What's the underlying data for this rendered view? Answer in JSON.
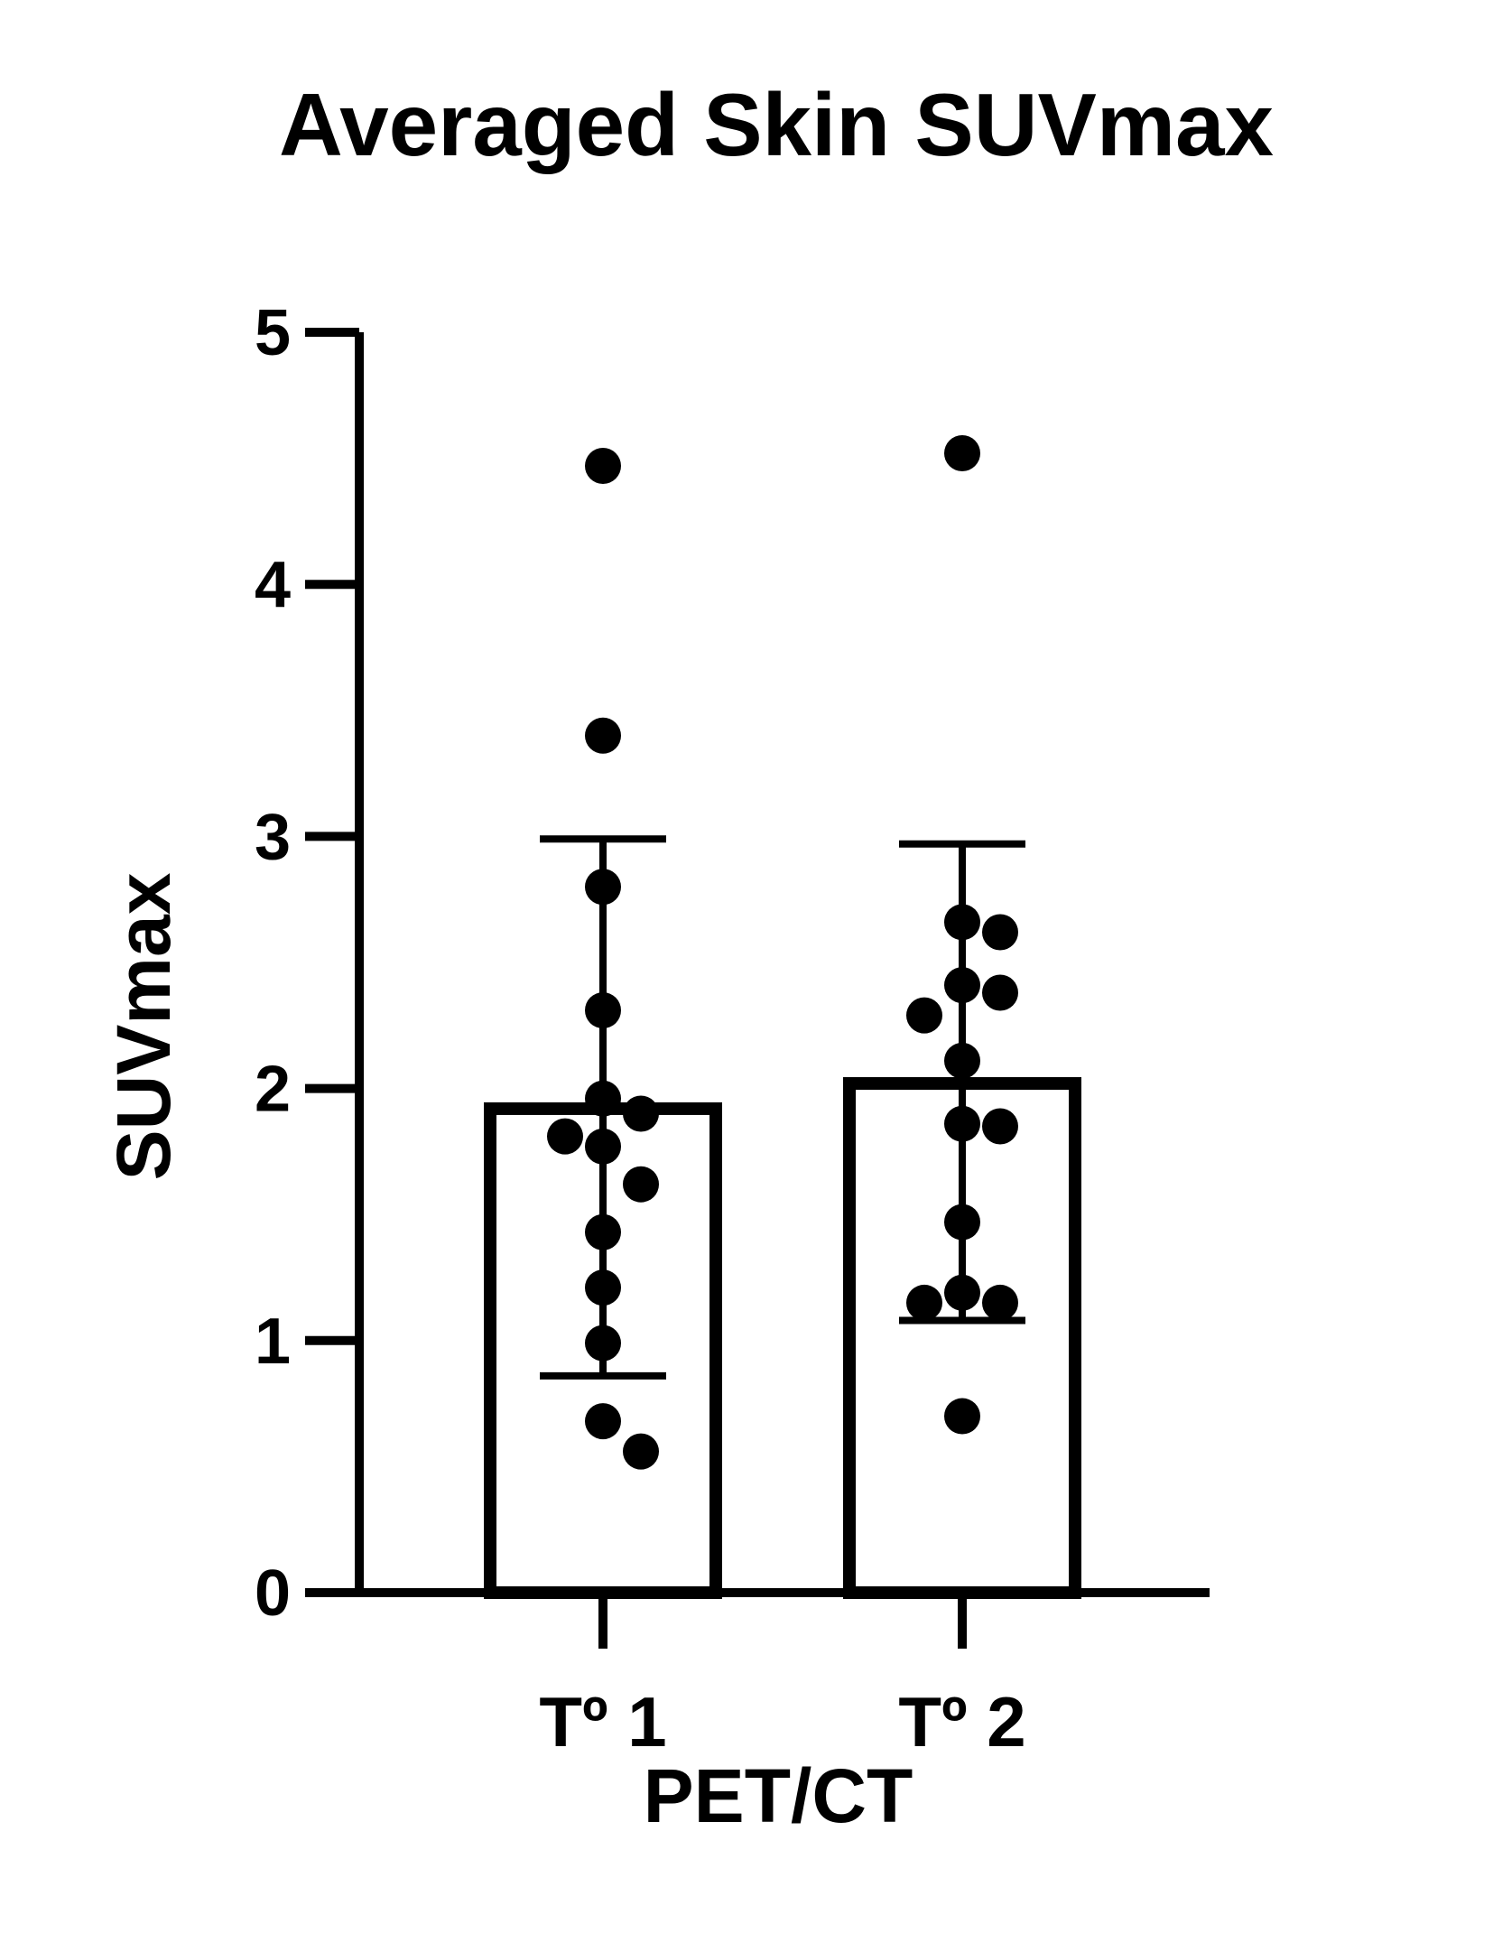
{
  "chart_data": {
    "type": "bar",
    "title": "Averaged Skin SUVmax",
    "xlabel": "PET/CT",
    "ylabel": "SUVmax",
    "ylim": [
      0,
      5
    ],
    "yticks": [
      0,
      1,
      2,
      3,
      4,
      5
    ],
    "ytick_labels": [
      "0",
      "1",
      "2",
      "3",
      "4",
      "5"
    ],
    "grid": false,
    "legend": "none",
    "colors": {
      "bar_fill": "#ffffff",
      "bar_edge": "#000000",
      "points": "#000000",
      "axes": "#000000"
    },
    "categories": [
      "Tº 1",
      "Tº 2"
    ],
    "values": [
      1.92,
      2.02
    ],
    "error": [
      {
        "low": 0.86,
        "high": 2.99
      },
      {
        "low": 1.08,
        "high": 2.97
      }
    ],
    "points": [
      [
        4.47,
        3.4,
        2.8,
        2.31,
        1.96,
        1.9,
        1.81,
        1.77,
        1.62,
        1.43,
        1.21,
        0.99,
        0.68,
        0.56
      ],
      [
        4.52,
        2.66,
        2.62,
        2.41,
        2.38,
        2.29,
        2.11,
        1.86,
        1.85,
        1.47,
        1.19,
        1.15,
        1.15,
        0.7
      ]
    ]
  }
}
